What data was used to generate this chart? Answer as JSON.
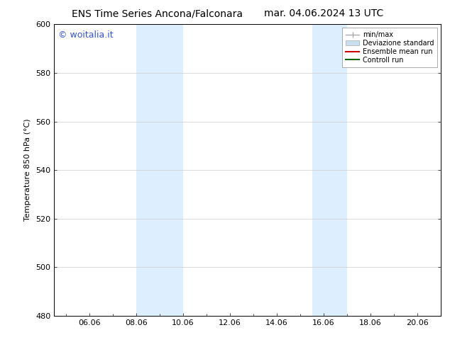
{
  "title_left": "ENS Time Series Ancona/Falconara",
  "title_right": "mar. 04.06.2024 13 UTC",
  "ylabel": "Temperature 850 hPa (°C)",
  "ylim": [
    480,
    600
  ],
  "yticks": [
    480,
    500,
    520,
    540,
    560,
    580,
    600
  ],
  "xlim_start": 4.5,
  "xlim_end": 21.0,
  "xtick_labels": [
    "06.06",
    "08.06",
    "10.06",
    "12.06",
    "14.06",
    "16.06",
    "18.06",
    "20.06"
  ],
  "xtick_positions": [
    6.0,
    8.0,
    10.0,
    12.0,
    14.0,
    16.0,
    18.0,
    20.0
  ],
  "shaded_bands": [
    {
      "x_start": 8.0,
      "x_end": 10.0,
      "color": "#ddeeff"
    },
    {
      "x_start": 15.5,
      "x_end": 17.0,
      "color": "#ddeeff"
    }
  ],
  "watermark_text": "© woitalia.it",
  "watermark_color": "#3355cc",
  "background_color": "#ffffff",
  "legend_items": [
    {
      "label": "min/max",
      "color": "#aaaaaa",
      "lw": 1.0,
      "style": "minmax"
    },
    {
      "label": "Deviazione standard",
      "color": "#c8dff0",
      "lw": 8,
      "style": "band"
    },
    {
      "label": "Ensemble mean run",
      "color": "#cc0000",
      "lw": 1.5,
      "style": "line"
    },
    {
      "label": "Controll run",
      "color": "#006600",
      "lw": 1.5,
      "style": "line"
    }
  ],
  "title_fontsize": 10,
  "axis_fontsize": 8,
  "tick_fontsize": 8,
  "watermark_fontsize": 9,
  "legend_fontsize": 7
}
